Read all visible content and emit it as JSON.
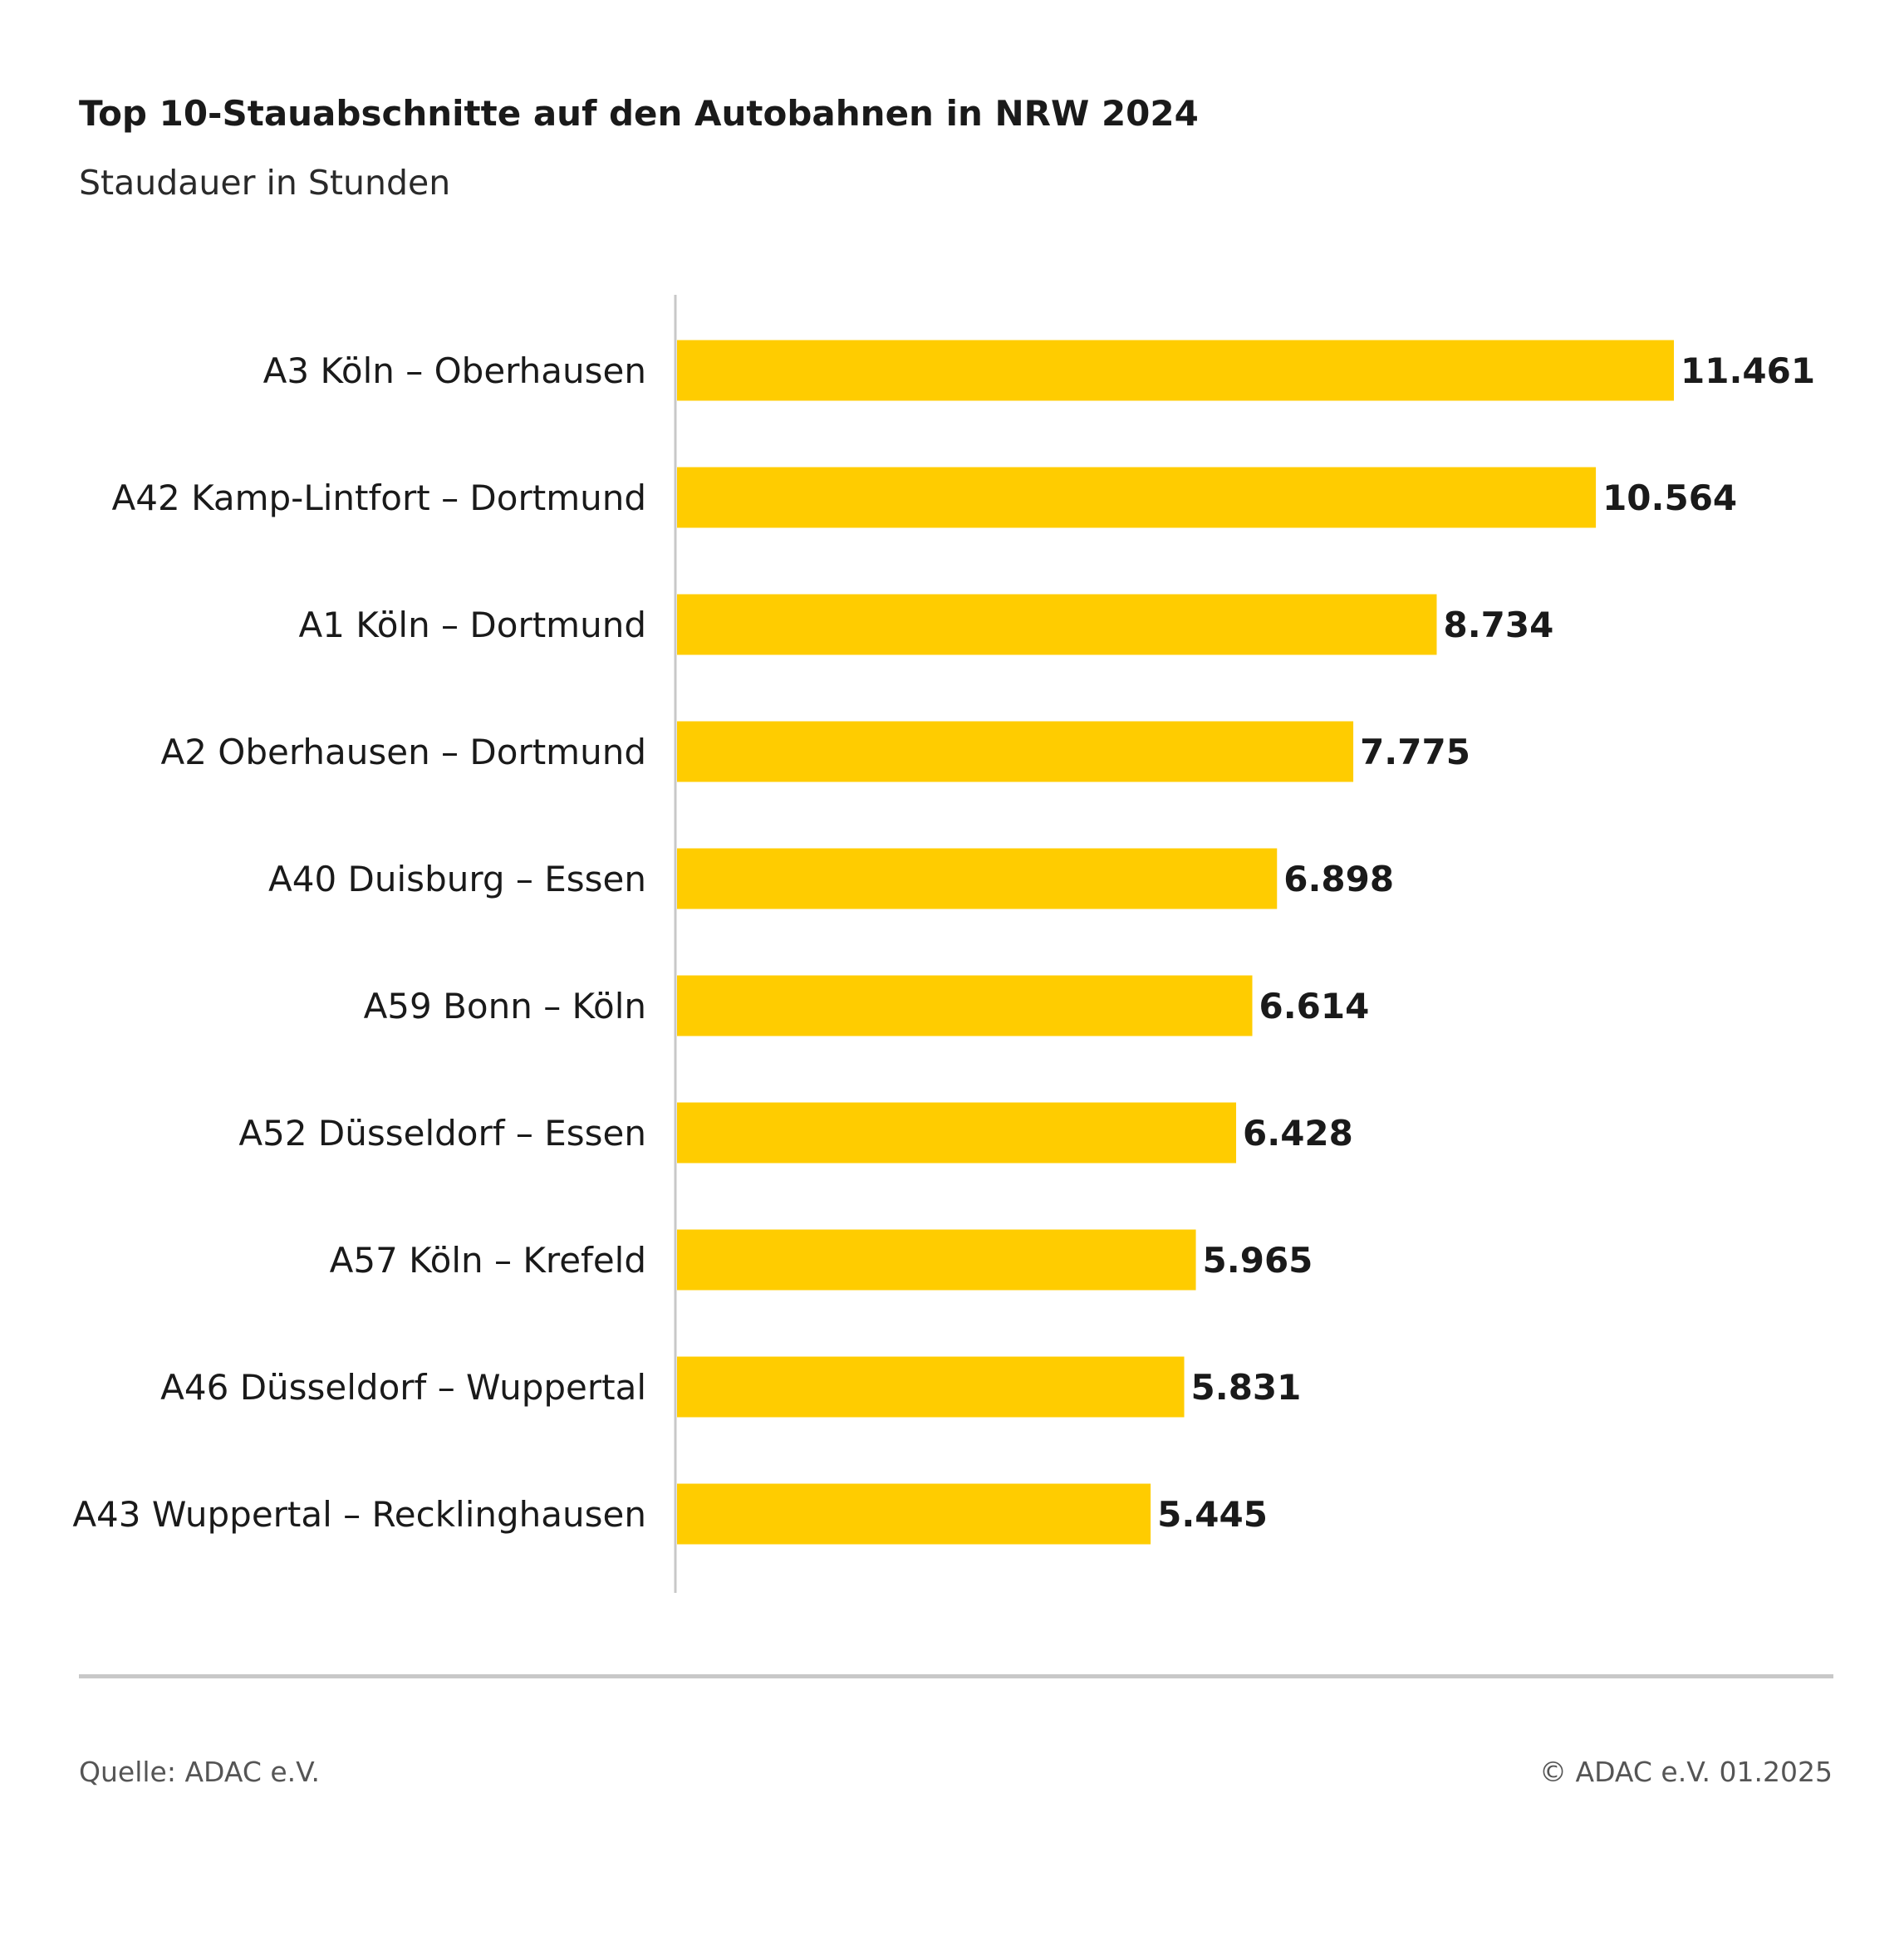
{
  "chart_data": {
    "type": "bar",
    "orientation": "horizontal",
    "title": "Top 10-Stauabschnitte auf den Autobahnen in NRW 2024",
    "subtitle": "Staudauer in Stunden",
    "categories": [
      "A3 Köln – Oberhausen",
      "A42 Kamp-Lintfort – Dortmund",
      "A1 Köln – Dortmund",
      "A2 Oberhausen – Dortmund",
      "A40 Duisburg – Essen",
      "A59 Bonn – Köln",
      "A52 Düsseldorf – Essen",
      "A57 Köln – Krefeld",
      "A46 Düsseldorf – Wuppertal",
      "A43 Wuppertal – Recklinghausen"
    ],
    "values": [
      11461,
      10564,
      8734,
      7775,
      6898,
      6614,
      6428,
      5965,
      5831,
      5445
    ],
    "value_labels": [
      "11.461",
      "10.564",
      "8.734",
      "7.775",
      "6.898",
      "6.614",
      "6.428",
      "5.965",
      "5.831",
      "5.445"
    ],
    "xlim": [
      0,
      11461
    ],
    "xlabel": "",
    "ylabel": "",
    "grid": false,
    "bar_color": "#FFCC00",
    "axis_color": "#c8c8c8"
  },
  "footer": {
    "source": "Quelle: ADAC e.V.",
    "copyright": "© ADAC e.V. 01.2025"
  }
}
